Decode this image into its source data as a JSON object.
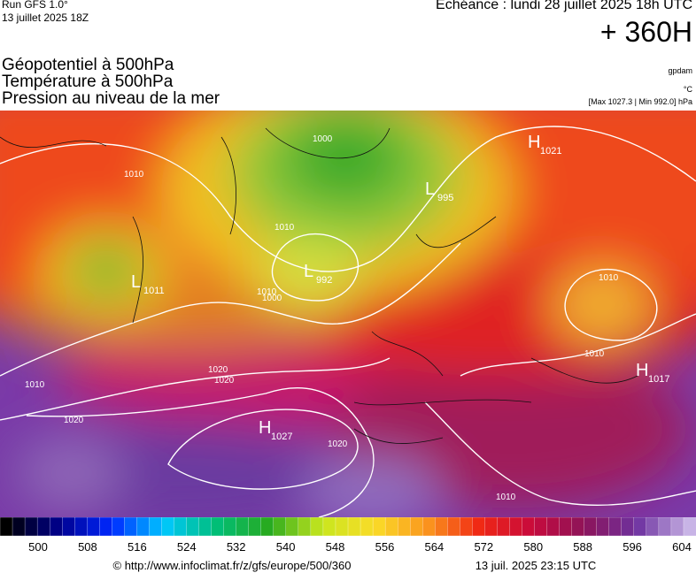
{
  "header": {
    "run": "Run GFS 1.0°",
    "run_date": "13 juillet 2025 18Z",
    "valid": "Echéance : lundi 28 juillet 2025 18h UTC",
    "lead": "+ 360H"
  },
  "layers": [
    "Géopotentiel à 500hPa",
    "Température à 500hPa",
    "Pression au niveau de la mer"
  ],
  "units": [
    "gpdam",
    "°C",
    "[Max 1027.3 | Min 992.0] hPa"
  ],
  "centers": [
    {
      "letter": "H",
      "value": "1021"
    },
    {
      "letter": "L",
      "value": "995"
    },
    {
      "letter": "L",
      "value": "992"
    },
    {
      "letter": "L",
      "value": "1011"
    },
    {
      "letter": "H",
      "value": "1027"
    },
    {
      "letter": "H",
      "value": "1017"
    }
  ],
  "isobar_labels": [
    "1000",
    "1010",
    "1000",
    "1010",
    "1010",
    "1020",
    "1010",
    "1020",
    "1020",
    "1020",
    "1010",
    "1010",
    "1010"
  ],
  "colorbar_ticks": [
    500,
    508,
    516,
    524,
    532,
    540,
    548,
    556,
    564,
    572,
    580,
    588,
    596,
    604
  ],
  "footer": {
    "url": "© http://www.infoclimat.fr/z/gfs/europe/500/360",
    "timestamp": "13 juil. 2025 23:15 UTC"
  }
}
